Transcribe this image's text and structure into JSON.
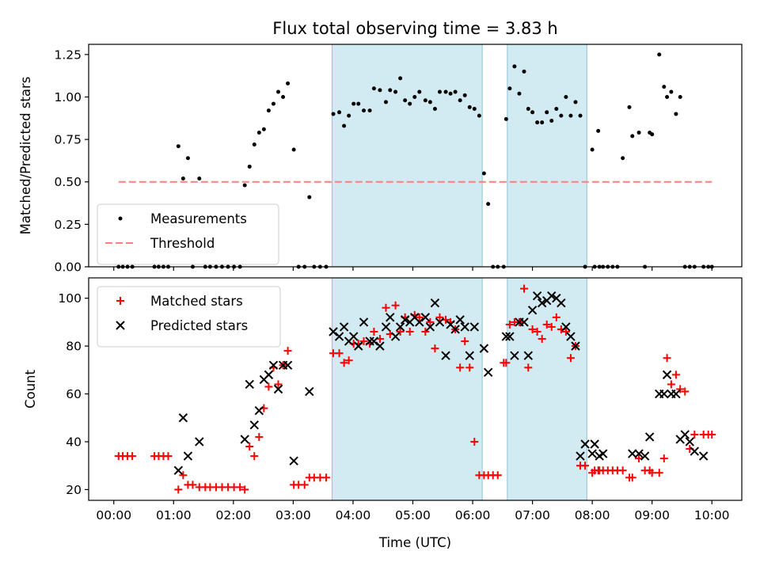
{
  "chart_data": [
    {
      "type": "scatter",
      "title": "Flux total observing time = 3.83 h",
      "xlabel": "",
      "ylabel": "Matched/Predicted stars",
      "xlim_hours": [
        -0.42,
        10.5
      ],
      "ylim": [
        0,
        1.31
      ],
      "x_ticks": [
        0,
        1,
        2,
        3,
        4,
        5,
        6,
        7,
        8,
        9,
        10
      ],
      "y_ticks": [
        0.0,
        0.25,
        0.5,
        0.75,
        1.0,
        1.25
      ],
      "y_tick_labels": [
        "0.00",
        "0.25",
        "0.50",
        "0.75",
        "1.00",
        "1.25"
      ],
      "grid": false,
      "legend_position": "lower-left",
      "shaded_intervals_hours": [
        [
          3.65,
          6.16
        ],
        [
          6.58,
          7.91
        ]
      ],
      "shade_color": "#add8e6",
      "series": [
        {
          "name": "Measurements",
          "marker": "dot",
          "color": "#000000",
          "x": [
            0.08,
            0.15,
            0.23,
            0.31,
            0.68,
            0.75,
            0.83,
            0.91,
            1.08,
            1.16,
            1.24,
            1.32,
            1.43,
            1.53,
            1.61,
            1.71,
            1.81,
            1.91,
            2.01,
            2.11,
            2.19,
            2.27,
            2.35,
            2.43,
            2.51,
            2.59,
            2.67,
            2.75,
            2.83,
            2.91,
            3.01,
            3.09,
            3.19,
            3.27,
            3.35,
            3.45,
            3.55,
            3.67,
            3.77,
            3.85,
            3.93,
            4.01,
            4.09,
            4.18,
            4.28,
            4.35,
            4.45,
            4.55,
            4.62,
            4.71,
            4.79,
            4.87,
            4.95,
            5.03,
            5.11,
            5.21,
            5.29,
            5.37,
            5.45,
            5.55,
            5.63,
            5.71,
            5.79,
            5.87,
            5.95,
            6.03,
            6.11,
            6.19,
            6.26,
            6.34,
            6.42,
            6.52,
            6.56,
            6.62,
            6.7,
            6.78,
            6.86,
            6.93,
            7.0,
            7.08,
            7.16,
            7.24,
            7.32,
            7.4,
            7.48,
            7.56,
            7.64,
            7.72,
            7.8,
            7.88,
            8.0,
            8.04,
            8.1,
            8.12,
            8.18,
            8.26,
            8.34,
            8.42,
            8.51,
            8.62,
            8.67,
            8.78,
            8.88,
            8.96,
            9.0,
            9.12,
            9.2,
            9.25,
            9.32,
            9.4,
            9.47,
            9.55,
            9.63,
            9.71,
            9.86,
            9.94,
            10.0
          ],
          "y": [
            0,
            0,
            0,
            0,
            0,
            0,
            0,
            0,
            0.71,
            0.52,
            0.64,
            0,
            0.52,
            0,
            0,
            0,
            0,
            0,
            0,
            0,
            0.48,
            0.59,
            0.72,
            0.79,
            0.81,
            0.92,
            0.96,
            1.03,
            1.0,
            1.08,
            0.69,
            0,
            0,
            0.41,
            0,
            0,
            0,
            0.9,
            0.91,
            0.83,
            0.89,
            0.96,
            0.96,
            0.92,
            0.92,
            1.05,
            1.04,
            0.97,
            1.04,
            1.03,
            1.11,
            0.98,
            0.96,
            1.0,
            1.03,
            0.98,
            0.97,
            0.93,
            1.03,
            1.03,
            1.02,
            1.03,
            0.98,
            1.01,
            0.94,
            0.93,
            0.89,
            0.55,
            0.37,
            0,
            0,
            0,
            0.87,
            1.05,
            1.18,
            1.02,
            1.15,
            0.93,
            0.91,
            0.85,
            0.85,
            0.91,
            0.86,
            0.93,
            0.89,
            1.0,
            0.89,
            0.97,
            0.89,
            0,
            0.69,
            0,
            0.8,
            0,
            0,
            0,
            0,
            0,
            0.64,
            0.94,
            0.77,
            0.79,
            0,
            0.79,
            0.78,
            1.25,
            1.06,
            1.0,
            1.03,
            0.9,
            1.0,
            0,
            0,
            0,
            0,
            0,
            0
          ]
        },
        {
          "name": "Threshold",
          "line": "dashed",
          "color": "#ff7f7f",
          "x": [
            0.08,
            10.0
          ],
          "y": [
            0.5,
            0.5
          ]
        }
      ]
    },
    {
      "type": "scatter",
      "title": "",
      "xlabel": "Time (UTC)",
      "ylabel": "Count",
      "xlim_hours": [
        -0.42,
        10.5
      ],
      "ylim": [
        15.5,
        108.5
      ],
      "x_ticks": [
        0,
        1,
        2,
        3,
        4,
        5,
        6,
        7,
        8,
        9,
        10
      ],
      "x_tick_labels": [
        "00:00",
        "01:00",
        "02:00",
        "03:00",
        "04:00",
        "05:00",
        "06:00",
        "07:00",
        "08:00",
        "09:00",
        "10:00"
      ],
      "y_ticks": [
        20,
        40,
        60,
        80,
        100
      ],
      "grid": false,
      "legend_position": "upper-left",
      "shaded_intervals_hours": [
        [
          3.65,
          6.16
        ],
        [
          6.58,
          7.91
        ]
      ],
      "shade_color": "#add8e6",
      "series": [
        {
          "name": "Matched stars",
          "marker": "plus",
          "color": "#ff0000",
          "x": [
            0.08,
            0.15,
            0.23,
            0.31,
            0.68,
            0.75,
            0.83,
            0.91,
            1.08,
            1.16,
            1.24,
            1.32,
            1.43,
            1.53,
            1.61,
            1.71,
            1.81,
            1.91,
            2.01,
            2.11,
            2.19,
            2.27,
            2.35,
            2.43,
            2.51,
            2.59,
            2.67,
            2.75,
            2.83,
            2.91,
            3.01,
            3.09,
            3.19,
            3.27,
            3.35,
            3.45,
            3.55,
            3.67,
            3.77,
            3.85,
            3.93,
            4.01,
            4.09,
            4.18,
            4.28,
            4.35,
            4.45,
            4.55,
            4.62,
            4.71,
            4.79,
            4.87,
            4.95,
            5.03,
            5.11,
            5.21,
            5.29,
            5.37,
            5.45,
            5.55,
            5.63,
            5.71,
            5.79,
            5.87,
            5.95,
            6.03,
            6.11,
            6.19,
            6.26,
            6.34,
            6.42,
            6.52,
            6.56,
            6.62,
            6.7,
            6.78,
            6.86,
            6.93,
            7.0,
            7.08,
            7.16,
            7.24,
            7.32,
            7.4,
            7.48,
            7.56,
            7.64,
            7.72,
            7.8,
            7.88,
            8.0,
            8.04,
            8.1,
            8.12,
            8.18,
            8.26,
            8.34,
            8.42,
            8.51,
            8.62,
            8.67,
            8.78,
            8.88,
            8.96,
            9.0,
            9.12,
            9.2,
            9.25,
            9.32,
            9.4,
            9.47,
            9.55,
            9.63,
            9.71,
            9.86,
            9.94,
            10.0
          ],
          "y": [
            34,
            34,
            34,
            34,
            34,
            34,
            34,
            34,
            20,
            26,
            22,
            22,
            21,
            21,
            21,
            21,
            21,
            21,
            21,
            21,
            20,
            38,
            34,
            42,
            54,
            63,
            71,
            64,
            72,
            78,
            22,
            22,
            22,
            25,
            25,
            25,
            25,
            77,
            77,
            73,
            74,
            81,
            81,
            82,
            81,
            86,
            83,
            96,
            85,
            97,
            86,
            92,
            86,
            93,
            92,
            86,
            90,
            79,
            92,
            91,
            90,
            87,
            71,
            82,
            71,
            40,
            26,
            26,
            26,
            26,
            26,
            73,
            73,
            89,
            90,
            90,
            104,
            71,
            87,
            86,
            83,
            89,
            88,
            92,
            87,
            86,
            75,
            80,
            30,
            30,
            27,
            28,
            28,
            28,
            28,
            28,
            28,
            28,
            28,
            25,
            25,
            33,
            28,
            28,
            27,
            27,
            33,
            75,
            64,
            68,
            62,
            61,
            37,
            43,
            43,
            43,
            43
          ]
        },
        {
          "name": "Predicted stars",
          "marker": "x",
          "color": "#000000",
          "x": [
            1.08,
            1.16,
            1.24,
            1.43,
            2.19,
            2.27,
            2.35,
            2.43,
            2.51,
            2.59,
            2.67,
            2.75,
            2.83,
            2.91,
            3.01,
            3.27,
            3.67,
            3.77,
            3.85,
            3.93,
            4.01,
            4.09,
            4.18,
            4.28,
            4.35,
            4.45,
            4.55,
            4.62,
            4.71,
            4.79,
            4.87,
            4.95,
            5.03,
            5.11,
            5.21,
            5.29,
            5.37,
            5.45,
            5.55,
            5.63,
            5.71,
            5.79,
            5.87,
            5.95,
            6.03,
            6.19,
            6.26,
            6.56,
            6.62,
            6.7,
            6.78,
            6.86,
            6.93,
            7.0,
            7.08,
            7.16,
            7.24,
            7.32,
            7.4,
            7.48,
            7.56,
            7.64,
            7.72,
            7.8,
            7.88,
            8.0,
            8.04,
            8.12,
            8.18,
            8.67,
            8.78,
            8.88,
            8.96,
            9.12,
            9.2,
            9.25,
            9.32,
            9.4,
            9.47,
            9.55,
            9.63,
            9.71,
            9.86
          ],
          "y": [
            28,
            50,
            34,
            40,
            41,
            64,
            47,
            53,
            66,
            68,
            72,
            62,
            72,
            72,
            32,
            61,
            86,
            84,
            88,
            82,
            84,
            80,
            90,
            82,
            82,
            80,
            88,
            92,
            84,
            88,
            91,
            90,
            92,
            90,
            92,
            88,
            98,
            90,
            76,
            89,
            87,
            91,
            88,
            76,
            88,
            79,
            69,
            84,
            84,
            76,
            90,
            90,
            76,
            95,
            101,
            98,
            99,
            101,
            100,
            98,
            88,
            84,
            80,
            34,
            39,
            35,
            39,
            34,
            35,
            35,
            35,
            34,
            42,
            60,
            60,
            68,
            60,
            60,
            41,
            43,
            40,
            36,
            34
          ]
        }
      ]
    }
  ]
}
